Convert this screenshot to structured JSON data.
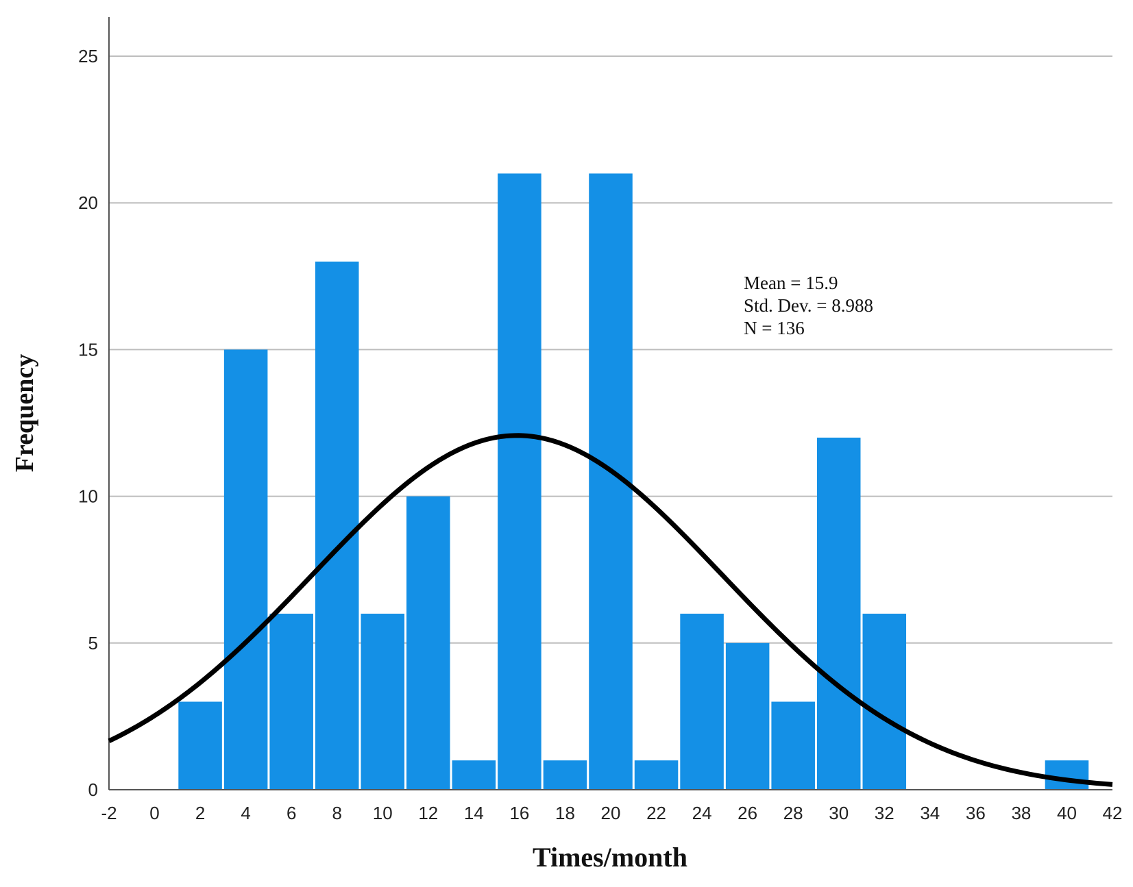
{
  "chart_data": {
    "type": "bar",
    "subtype": "histogram",
    "title": "",
    "xlabel": "Times/month",
    "ylabel": "Frequency",
    "xlim": [
      -2,
      42
    ],
    "ylim": [
      0,
      26
    ],
    "x_ticks": [
      "-2",
      "0",
      "2",
      "4",
      "6",
      "8",
      "10",
      "12",
      "14",
      "16",
      "18",
      "20",
      "22",
      "24",
      "26",
      "28",
      "30",
      "32",
      "34",
      "36",
      "38",
      "40",
      "42"
    ],
    "y_ticks": [
      "0",
      "5",
      "10",
      "15",
      "20",
      "25"
    ],
    "bin_width": 2,
    "bins": [
      {
        "center": 2,
        "value": 3
      },
      {
        "center": 4,
        "value": 15
      },
      {
        "center": 6,
        "value": 6
      },
      {
        "center": 8,
        "value": 18
      },
      {
        "center": 10,
        "value": 6
      },
      {
        "center": 12,
        "value": 10
      },
      {
        "center": 14,
        "value": 1
      },
      {
        "center": 16,
        "value": 21
      },
      {
        "center": 18,
        "value": 1
      },
      {
        "center": 20,
        "value": 21
      },
      {
        "center": 22,
        "value": 1
      },
      {
        "center": 24,
        "value": 6
      },
      {
        "center": 26,
        "value": 5
      },
      {
        "center": 28,
        "value": 3
      },
      {
        "center": 30,
        "value": 12
      },
      {
        "center": 32,
        "value": 6
      },
      {
        "center": 40,
        "value": 1
      }
    ],
    "normal_curve": {
      "mean": 15.9,
      "std": 8.988,
      "n": 136
    },
    "grid": true,
    "bar_color": "#1490e6",
    "curve_color": "#000000",
    "stats_lines": [
      "Mean = 15.9",
      "Std. Dev. = 8.988",
      "N = 136"
    ]
  }
}
